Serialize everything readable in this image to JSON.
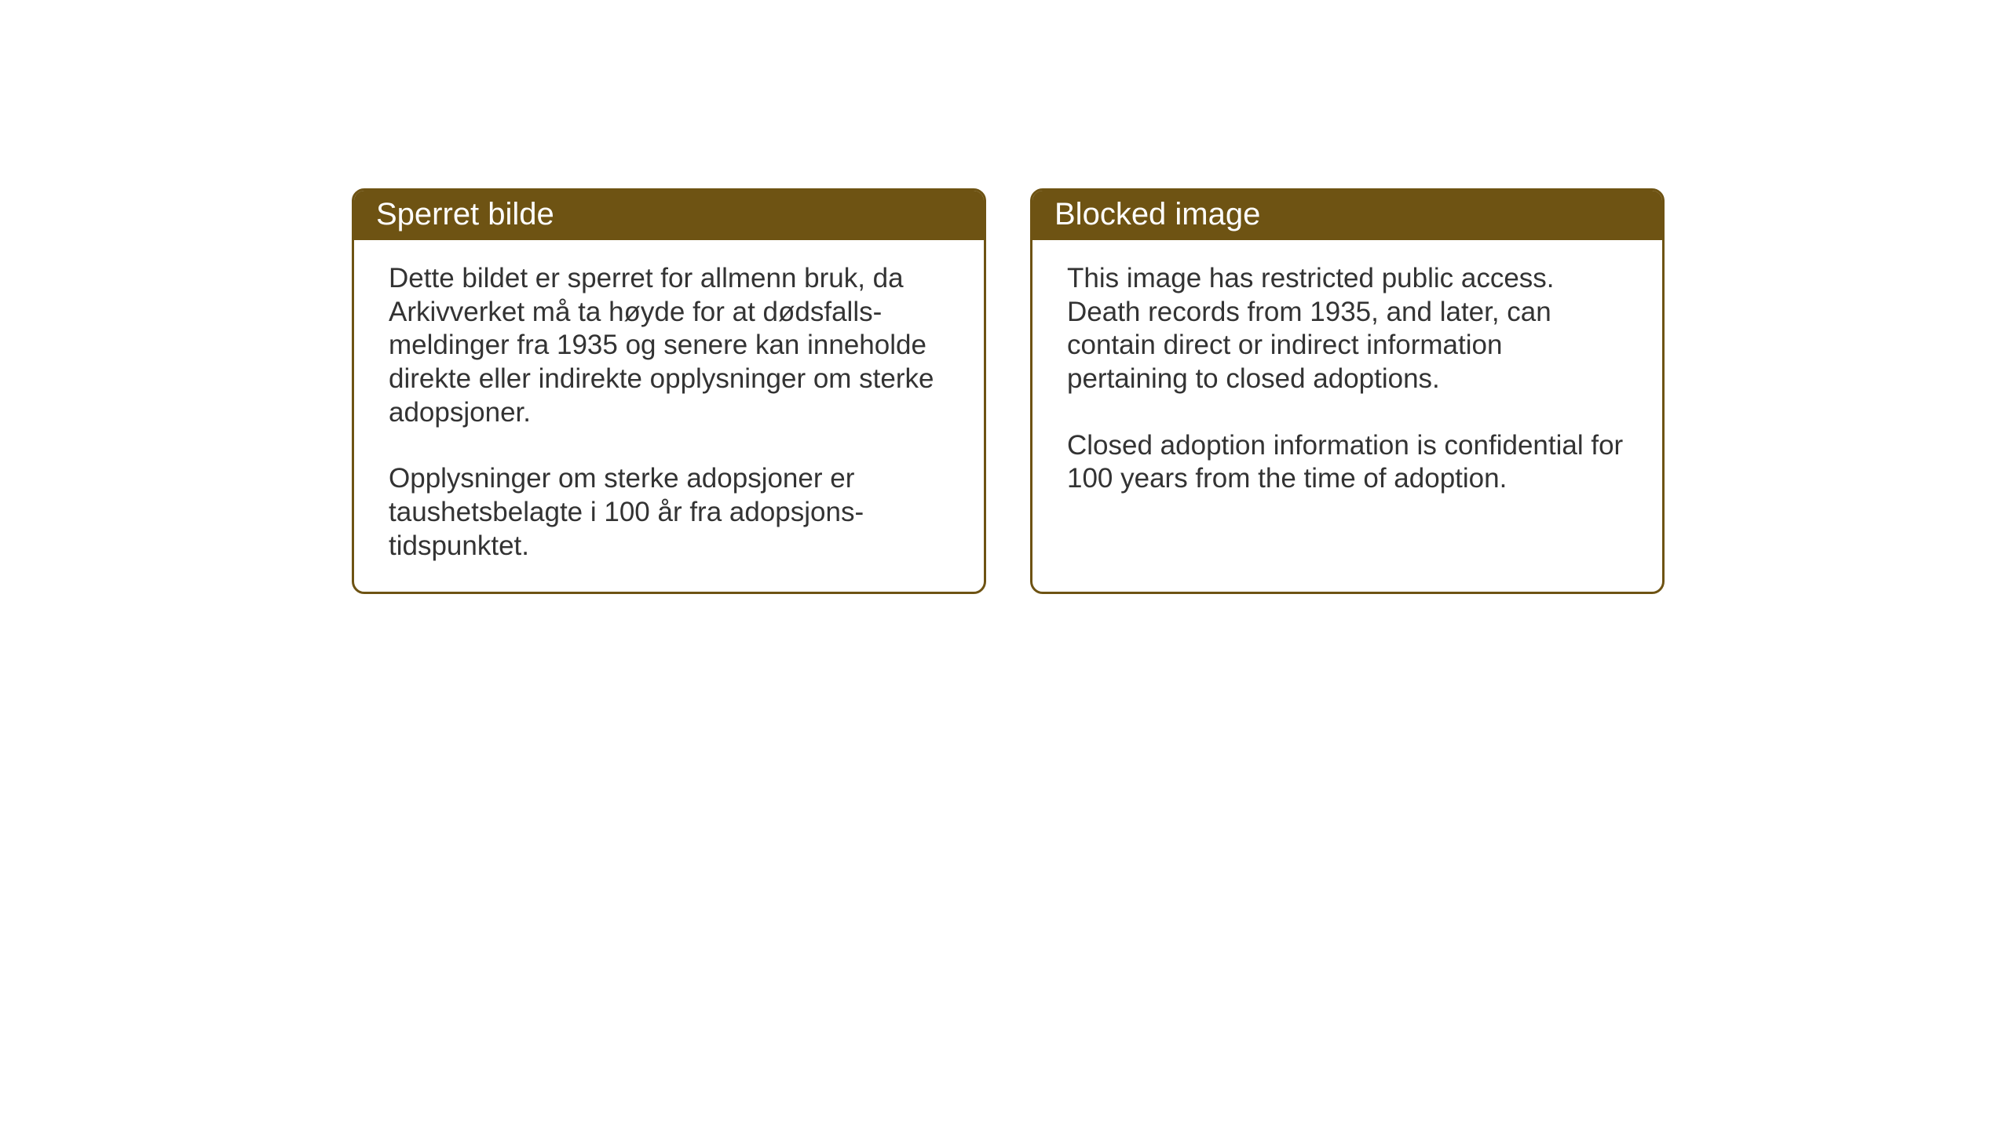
{
  "layout": {
    "background_color": "#ffffff",
    "card_border_color": "#6e5313",
    "card_border_width": 3,
    "card_border_radius": 16,
    "header_background_color": "#6e5313",
    "header_text_color": "#ffffff",
    "body_text_color": "#333333",
    "header_font_size": 40,
    "body_font_size": 35
  },
  "cards": {
    "norwegian": {
      "title": "Sperret bilde",
      "paragraph1": "Dette bildet er sperret for allmenn bruk, da Arkivverket må ta høyde for at dødsfalls-meldinger fra 1935 og senere kan inneholde direkte eller indirekte opplysninger om sterke adopsjoner.",
      "paragraph2": "Opplysninger om sterke adopsjoner er taushetsbelagte i 100 år fra adopsjons-tidspunktet."
    },
    "english": {
      "title": "Blocked image",
      "paragraph1": "This image has restricted public access. Death records from 1935, and later, can contain direct or indirect information pertaining to closed adoptions.",
      "paragraph2": "Closed adoption information is confidential for 100 years from the time of adoption."
    }
  }
}
